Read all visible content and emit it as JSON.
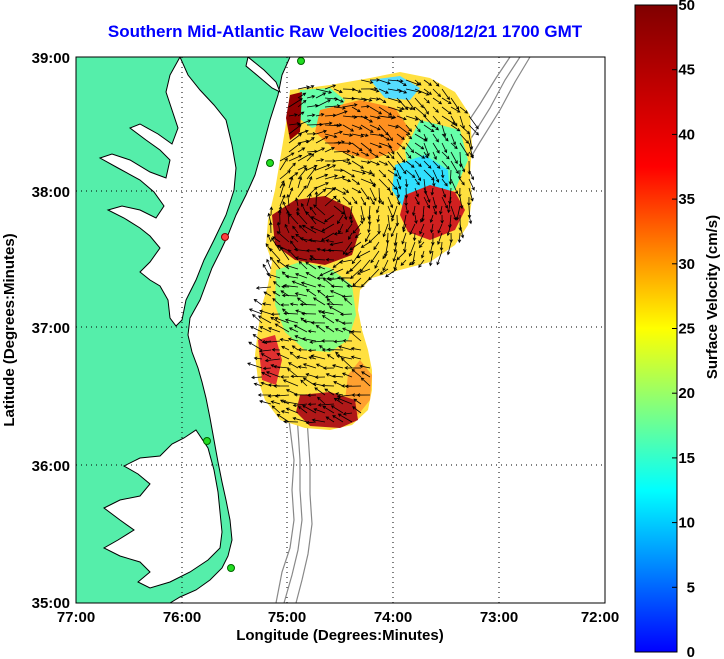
{
  "title": "Southern Mid-Atlantic Raw Velocities 2008/12/21 1700 GMT",
  "xlabel": "Longitude (Degrees:Minutes)",
  "ylabel": "Latitude (Degrees:Minutes)",
  "x_ticks": [
    "77:00",
    "76:00",
    "75:00",
    "74:00",
    "73:00",
    "72:00"
  ],
  "y_ticks": [
    "39:00",
    "38:00",
    "37:00",
    "36:00",
    "35:00"
  ],
  "colorbar": {
    "label": "Surface Velocity (cm/s)",
    "ticks": [
      "0",
      "5",
      "10",
      "15",
      "20",
      "25",
      "30",
      "35",
      "40",
      "45",
      "50"
    ],
    "min": 0,
    "max": 50,
    "colormap": "jet"
  },
  "map": {
    "lon_range": [
      -77,
      -72
    ],
    "lat_range": [
      35,
      39
    ],
    "land_color": "#55eeaa",
    "water_color": "#ffffff",
    "grid": "dotted",
    "bathymetry_color": "#888888",
    "station_color": "#22dd22",
    "current_arrow_color": "#000000"
  }
}
